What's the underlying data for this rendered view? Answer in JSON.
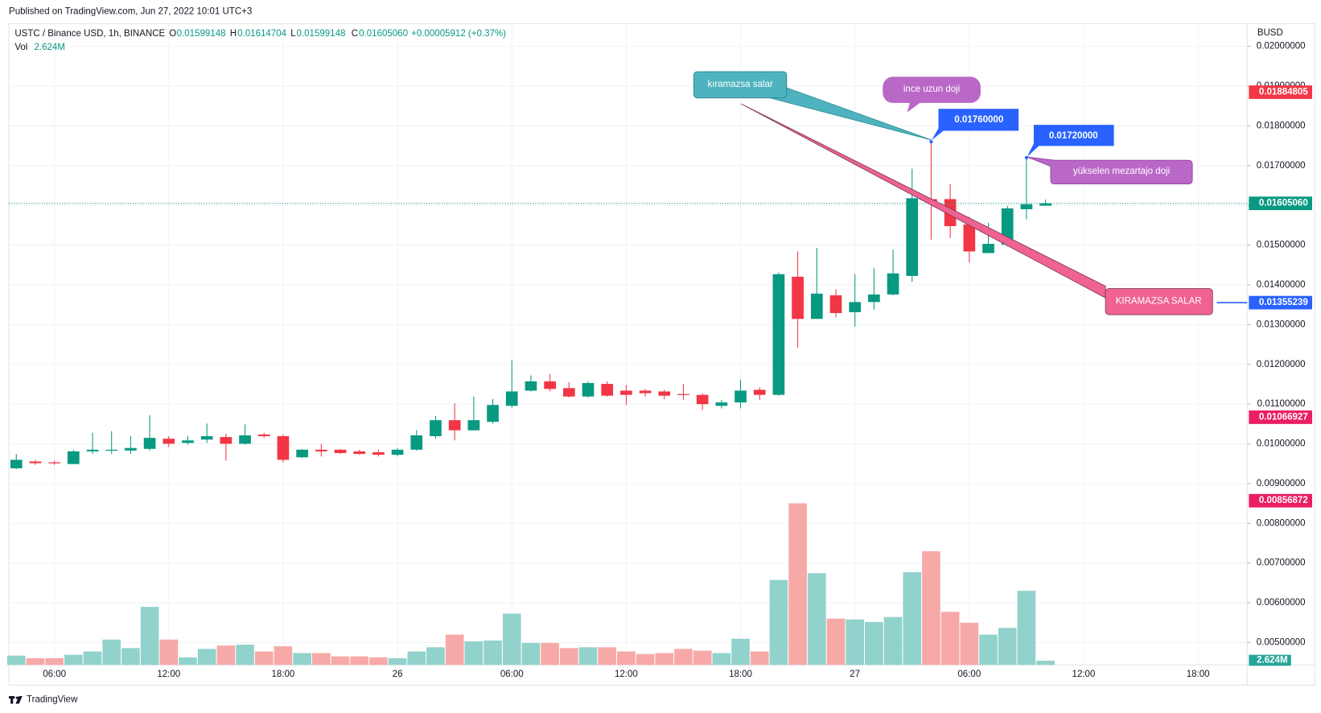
{
  "published": "Published on TradingView.com, Jun 27, 2022 10:01 UTC+3",
  "footer": "TradingView",
  "chart_data": {
    "type": "candlestick",
    "title": "USTC / Binance USD, 1h, BINANCE",
    "currency": "BUSD",
    "legend": [
      {
        "key": "O",
        "value": "0.01599148"
      },
      {
        "key": "H",
        "value": "0.01614704"
      },
      {
        "key": "L",
        "value": "0.01599148"
      },
      {
        "key": "C",
        "value": "0.01605060"
      }
    ],
    "change": "+0.00005912 (+0.37%)",
    "open": [
      0.009385,
      0.009555,
      0.009534,
      0.009491,
      0.00981,
      0.009831,
      0.009831,
      0.009873,
      0.010128,
      0.010022,
      0.010107,
      0.010171,
      0.010001,
      0.010234,
      0.010192,
      0.009661,
      0.009852,
      0.009852,
      0.00981,
      0.009788,
      0.009725,
      0.009852,
      0.010192,
      0.010595,
      0.01034,
      0.010553,
      0.010956,
      0.011338,
      0.011572,
      0.011402,
      0.01119,
      0.011508,
      0.011338,
      0.011338,
      0.011317,
      0.011253,
      0.011232,
      0.010956,
      0.011041,
      0.011359,
      0.011232,
      0.014204,
      0.013143,
      0.013737,
      0.013313,
      0.013567,
      0.013758,
      0.014225,
      0.016157,
      0.016157,
      0.01552,
      0.014799,
      0.015011,
      0.015903,
      0.01599148
    ],
    "high": [
      0.009746,
      0.009597,
      0.009576,
      0.009852,
      0.010277,
      0.010319,
      0.010192,
      0.010722,
      0.010192,
      0.010192,
      0.01051,
      0.010255,
      0.010489,
      0.010277,
      0.010234,
      0.009873,
      0.010001,
      0.009873,
      0.009852,
      0.009852,
      0.009895,
      0.01034,
      0.010701,
      0.01102,
      0.01119,
      0.011126,
      0.012102,
      0.01172,
      0.011763,
      0.01155,
      0.011572,
      0.011572,
      0.011487,
      0.011381,
      0.011359,
      0.011508,
      0.011274,
      0.011105,
      0.011614,
      0.011423,
      0.01431,
      0.014841,
      0.014926,
      0.013886,
      0.014268,
      0.014417,
      0.014884,
      0.016922,
      0.0176,
      0.01654,
      0.015712,
      0.015563,
      0.015988,
      0.0172,
      0.01614704
    ],
    "low": [
      0.009364,
      0.00947,
      0.00947,
      0.009491,
      0.009746,
      0.009746,
      0.009746,
      0.009831,
      0.009916,
      0.009979,
      0.010022,
      0.009576,
      0.009979,
      0.010149,
      0.009534,
      0.00964,
      0.009682,
      0.009746,
      0.009725,
      0.009682,
      0.009682,
      0.009831,
      0.010128,
      0.010086,
      0.01034,
      0.01051,
      0.010914,
      0.011317,
      0.011317,
      0.011168,
      0.011168,
      0.01119,
      0.010977,
      0.01119,
      0.011126,
      0.011105,
      0.01085,
      0.010892,
      0.010892,
      0.011105,
      0.011211,
      0.012421,
      0.013143,
      0.013185,
      0.012952,
      0.013376,
      0.013737,
      0.014077,
      0.015138,
      0.015181,
      0.014565,
      0.014799,
      0.014968,
      0.015648,
      0.01599148
    ],
    "close": [
      0.009597,
      0.009512,
      0.009512,
      0.00981,
      0.009852,
      0.009852,
      0.009895,
      0.010149,
      0.010001,
      0.010086,
      0.010192,
      0.010001,
      0.010213,
      0.010192,
      0.009597,
      0.009852,
      0.00981,
      0.009767,
      0.009746,
      0.009725,
      0.009852,
      0.010213,
      0.010595,
      0.01034,
      0.010595,
      0.010977,
      0.011317,
      0.011572,
      0.011381,
      0.01119,
      0.011529,
      0.011211,
      0.011232,
      0.011274,
      0.011211,
      0.011232,
      0.010998,
      0.011041,
      0.011338,
      0.011232,
      0.014268,
      0.013143,
      0.01378,
      0.013291,
      0.013567,
      0.013758,
      0.014289,
      0.016179,
      0.016072,
      0.015478,
      0.014841,
      0.015032,
      0.015924,
      0.01603,
      0.0160506
    ],
    "up_color": "#089981",
    "down_color": "#f23645",
    "volume": {
      "name": "Vol",
      "last_label": "2.624M",
      "up_color": "#92d2cc",
      "down_color": "#f7a9a7",
      "ylim": [
        0,
        120
      ],
      "values": [
        5.8,
        4.2,
        4.2,
        6.3,
        8.4,
        15.8,
        10.5,
        36.2,
        15.8,
        4.7,
        10.0,
        12.1,
        12.6,
        8.4,
        11.6,
        7.4,
        7.4,
        5.3,
        5.3,
        4.7,
        4.2,
        8.4,
        11.0,
        18.9,
        14.7,
        15.2,
        32.0,
        13.7,
        13.7,
        10.5,
        11.0,
        11.0,
        8.4,
        6.8,
        7.4,
        10.0,
        8.9,
        7.4,
        16.3,
        8.4,
        53.0,
        100.8,
        57.2,
        28.9,
        28.4,
        26.8,
        29.9,
        57.8,
        70.9,
        33.1,
        26.3,
        18.9,
        23.1,
        46.2,
        2.624
      ]
    },
    "ylim": [
      0.004437,
      0.020573
    ],
    "yticks": [
      {
        "value": 0.02,
        "label": "0.02000000"
      },
      {
        "value": 0.019,
        "label": "0.01900000"
      },
      {
        "value": 0.018,
        "label": "0.01800000"
      },
      {
        "value": 0.017,
        "label": "0.01700000"
      },
      {
        "value": 0.016,
        "label": "0.01600000"
      },
      {
        "value": 0.015,
        "label": "0.01500000"
      },
      {
        "value": 0.014,
        "label": "0.01400000"
      },
      {
        "value": 0.013,
        "label": "0.01300000"
      },
      {
        "value": 0.012,
        "label": "0.01200000"
      },
      {
        "value": 0.011,
        "label": "0.01100000"
      },
      {
        "value": 0.01,
        "label": "0.01000000"
      },
      {
        "value": 0.009,
        "label": "0.00900000"
      },
      {
        "value": 0.008,
        "label": "0.00800000"
      },
      {
        "value": 0.007,
        "label": "0.00700000"
      },
      {
        "value": 0.006,
        "label": "0.00600000"
      },
      {
        "value": 0.005,
        "label": "0.00500000"
      }
    ],
    "xlim": [
      -0.39,
      64.58
    ],
    "xticks": [
      {
        "value": 2,
        "label": "06:00"
      },
      {
        "value": 8,
        "label": "12:00"
      },
      {
        "value": 14,
        "label": "18:00"
      },
      {
        "value": 20,
        "label": "26"
      },
      {
        "value": 26,
        "label": "06:00"
      },
      {
        "value": 32,
        "label": "12:00"
      },
      {
        "value": 38,
        "label": "18:00"
      },
      {
        "value": 44,
        "label": "27"
      },
      {
        "value": 50,
        "label": "06:00"
      },
      {
        "value": 56,
        "label": "12:00"
      },
      {
        "value": 62,
        "label": "18:00"
      }
    ],
    "grid": true,
    "last_price": {
      "value": 0.0160506,
      "label": "0.01605060"
    },
    "price_markers": [
      {
        "value": 0.01884805,
        "label": "0.01884805",
        "color": "#f23645"
      },
      {
        "value": 0.01355239,
        "label": "0.01355239",
        "color": "#2962ff"
      },
      {
        "value": 0.01066927,
        "label": "0.01066927",
        "color": "#e91e63"
      },
      {
        "value": 0.00856872,
        "label": "0.00856872",
        "color": "#e91e63"
      }
    ],
    "annotations": [
      {
        "text": "kıramazsa salar"
      },
      {
        "text": "ince uzun doji"
      },
      {
        "value": 0.0176,
        "label": "0.01760000"
      },
      {
        "value": 0.0172,
        "label": "0.01720000"
      },
      {
        "text": "yükselen mezartajo doji"
      },
      {
        "text": "KIRAMAZSA SALAR"
      }
    ]
  }
}
